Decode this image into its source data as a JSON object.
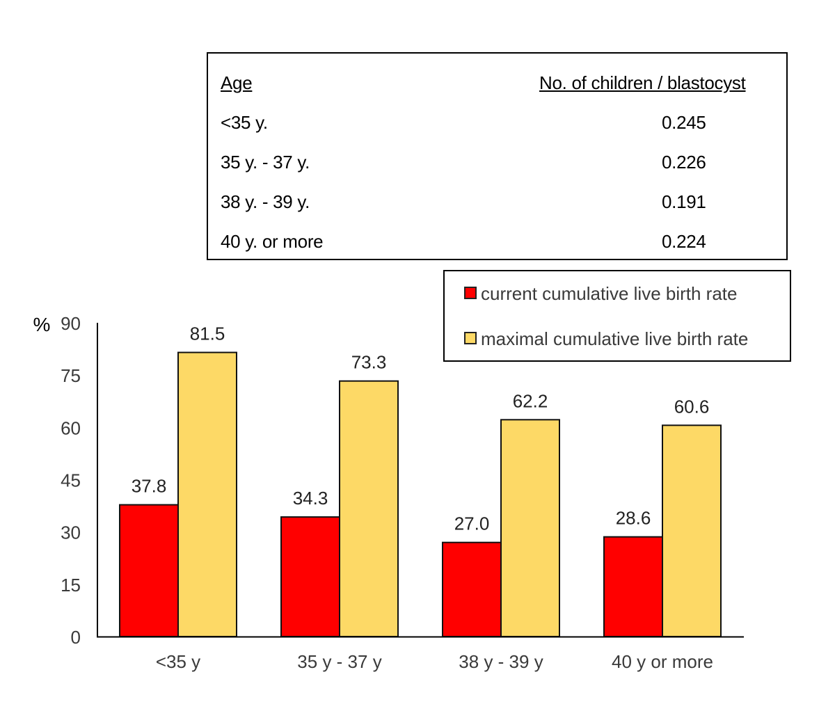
{
  "table": {
    "headers": [
      "Age",
      "No. of children / blastocyst"
    ],
    "rows": [
      [
        "<35 y.",
        "0.245"
      ],
      [
        "35 y. - 37 y.",
        "0.226"
      ],
      [
        "38 y. - 39 y.",
        "0.191"
      ],
      [
        "40 y. or more",
        "0.224"
      ]
    ]
  },
  "colors": {
    "current": "#ff0000",
    "maximal": "#fdd966",
    "outline": "#111111",
    "text": "#3a3a3a"
  },
  "chart_data": {
    "type": "bar",
    "title": "",
    "xlabel": "",
    "ylabel": "%",
    "ylim": [
      0,
      90
    ],
    "yticks": [
      0,
      15,
      30,
      45,
      60,
      75,
      90
    ],
    "grid": false,
    "legend_position": "top-right",
    "categories": [
      "<35 y",
      "35 y - 37 y",
      "38 y - 39 y",
      "40 y or more"
    ],
    "series": [
      {
        "name": "current cumulative live birth rate",
        "values": [
          37.8,
          34.3,
          27.0,
          28.6
        ],
        "labels": [
          "37.8",
          "34.3",
          "27.0",
          "28.6"
        ]
      },
      {
        "name": "maximal cumulative live birth rate",
        "values": [
          81.5,
          73.3,
          62.2,
          60.6
        ],
        "labels": [
          "81.5",
          "73.3",
          "62.2",
          "60.6"
        ]
      }
    ]
  }
}
